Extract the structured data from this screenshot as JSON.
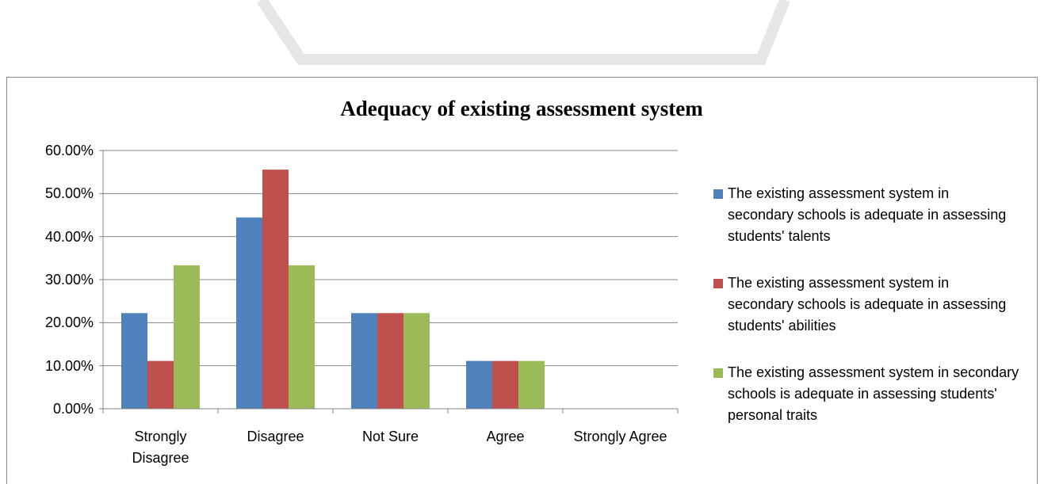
{
  "chart_data": {
    "type": "bar",
    "title": "Adequacy of existing assessment system",
    "categories": [
      "Strongly Disagree",
      "Disagree",
      "Not Sure",
      "Agree",
      "Strongly Agree"
    ],
    "series": [
      {
        "name": "The existing assessment system in secondary schools is adequate in assessing students' talents",
        "color": "#4f81bd",
        "values": [
          22.22,
          44.44,
          22.22,
          11.11,
          0
        ]
      },
      {
        "name": "The existing assessment system in secondary schools is adequate in assessing students' abilities",
        "color": "#c0504d",
        "values": [
          11.11,
          55.56,
          22.22,
          11.11,
          0
        ]
      },
      {
        "name": "The existing assessment system in secondary schools is adequate in assessing students' personal traits",
        "color": "#9bbb59",
        "values": [
          33.33,
          33.33,
          22.22,
          11.11,
          0
        ]
      }
    ],
    "ylim": [
      0,
      60
    ],
    "yticks": [
      {
        "value": 0,
        "label": "0.00%"
      },
      {
        "value": 10,
        "label": "10.00%"
      },
      {
        "value": 20,
        "label": "20.00%"
      },
      {
        "value": 30,
        "label": "30.00%"
      },
      {
        "value": 40,
        "label": "40.00%"
      },
      {
        "value": 50,
        "label": "50.00%"
      },
      {
        "value": 60,
        "label": "60.00%"
      }
    ],
    "grid": true,
    "legend": "right"
  }
}
